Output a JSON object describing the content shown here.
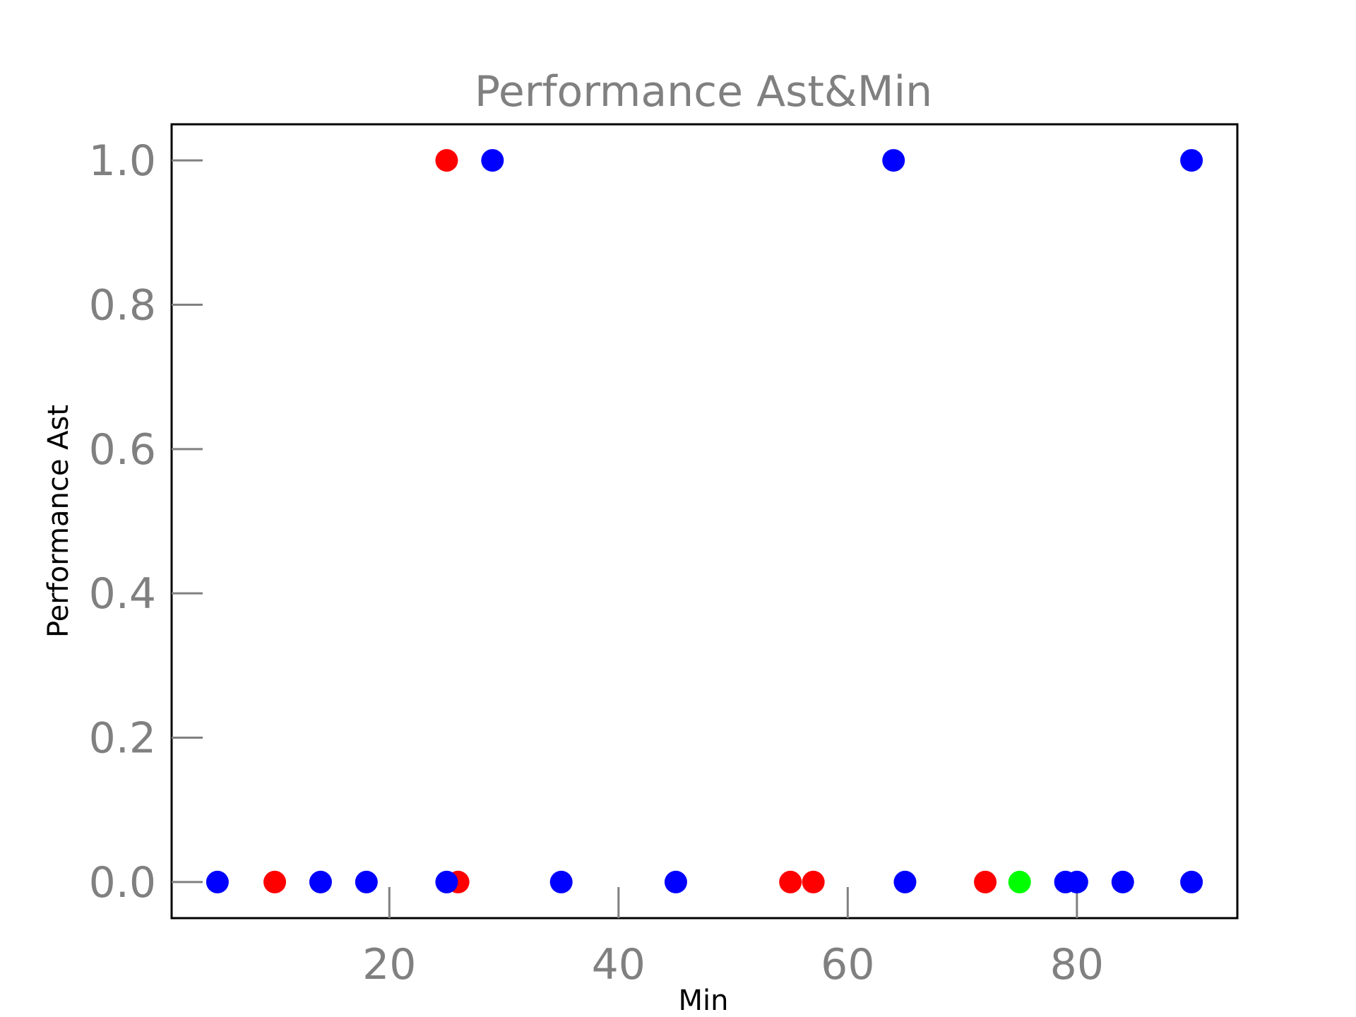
{
  "chart_data": {
    "type": "scatter",
    "title": "Performance Ast&Min",
    "xlabel": "Min",
    "ylabel": "Performance Ast",
    "xlim": [
      1,
      94
    ],
    "ylim": [
      -0.05,
      1.05
    ],
    "xticks": [
      20,
      40,
      60,
      80
    ],
    "xtick_labels": [
      "20",
      "40",
      "60",
      "80"
    ],
    "yticks": [
      0.0,
      0.2,
      0.4,
      0.6,
      0.8,
      1.0
    ],
    "ytick_labels": [
      "0.0",
      "0.2",
      "0.4",
      "0.6",
      "0.8",
      "1.0"
    ],
    "grid": false,
    "colors": {
      "blue": "#0000ff",
      "red": "#ff0000",
      "green": "#00ff00",
      "title": "#808080",
      "ticks": "#808080",
      "frame": "#000000"
    },
    "points": [
      {
        "x": 5,
        "y": 0,
        "color": "#0000ff"
      },
      {
        "x": 10,
        "y": 0,
        "color": "#ff0000"
      },
      {
        "x": 14,
        "y": 0,
        "color": "#0000ff"
      },
      {
        "x": 18,
        "y": 0,
        "color": "#0000ff"
      },
      {
        "x": 26,
        "y": 0,
        "color": "#ff0000"
      },
      {
        "x": 25,
        "y": 0,
        "color": "#0000ff"
      },
      {
        "x": 35,
        "y": 0,
        "color": "#0000ff"
      },
      {
        "x": 45,
        "y": 0,
        "color": "#0000ff"
      },
      {
        "x": 55,
        "y": 0,
        "color": "#ff0000"
      },
      {
        "x": 57,
        "y": 0,
        "color": "#ff0000"
      },
      {
        "x": 65,
        "y": 0,
        "color": "#0000ff"
      },
      {
        "x": 72,
        "y": 0,
        "color": "#ff0000"
      },
      {
        "x": 75,
        "y": 0,
        "color": "#00ff00"
      },
      {
        "x": 79,
        "y": 0,
        "color": "#0000ff"
      },
      {
        "x": 80,
        "y": 0,
        "color": "#0000ff"
      },
      {
        "x": 84,
        "y": 0,
        "color": "#0000ff"
      },
      {
        "x": 90,
        "y": 0,
        "color": "#0000ff"
      },
      {
        "x": 25,
        "y": 1,
        "color": "#ff0000"
      },
      {
        "x": 29,
        "y": 1,
        "color": "#0000ff"
      },
      {
        "x": 64,
        "y": 1,
        "color": "#0000ff"
      },
      {
        "x": 90,
        "y": 1,
        "color": "#0000ff"
      }
    ]
  }
}
